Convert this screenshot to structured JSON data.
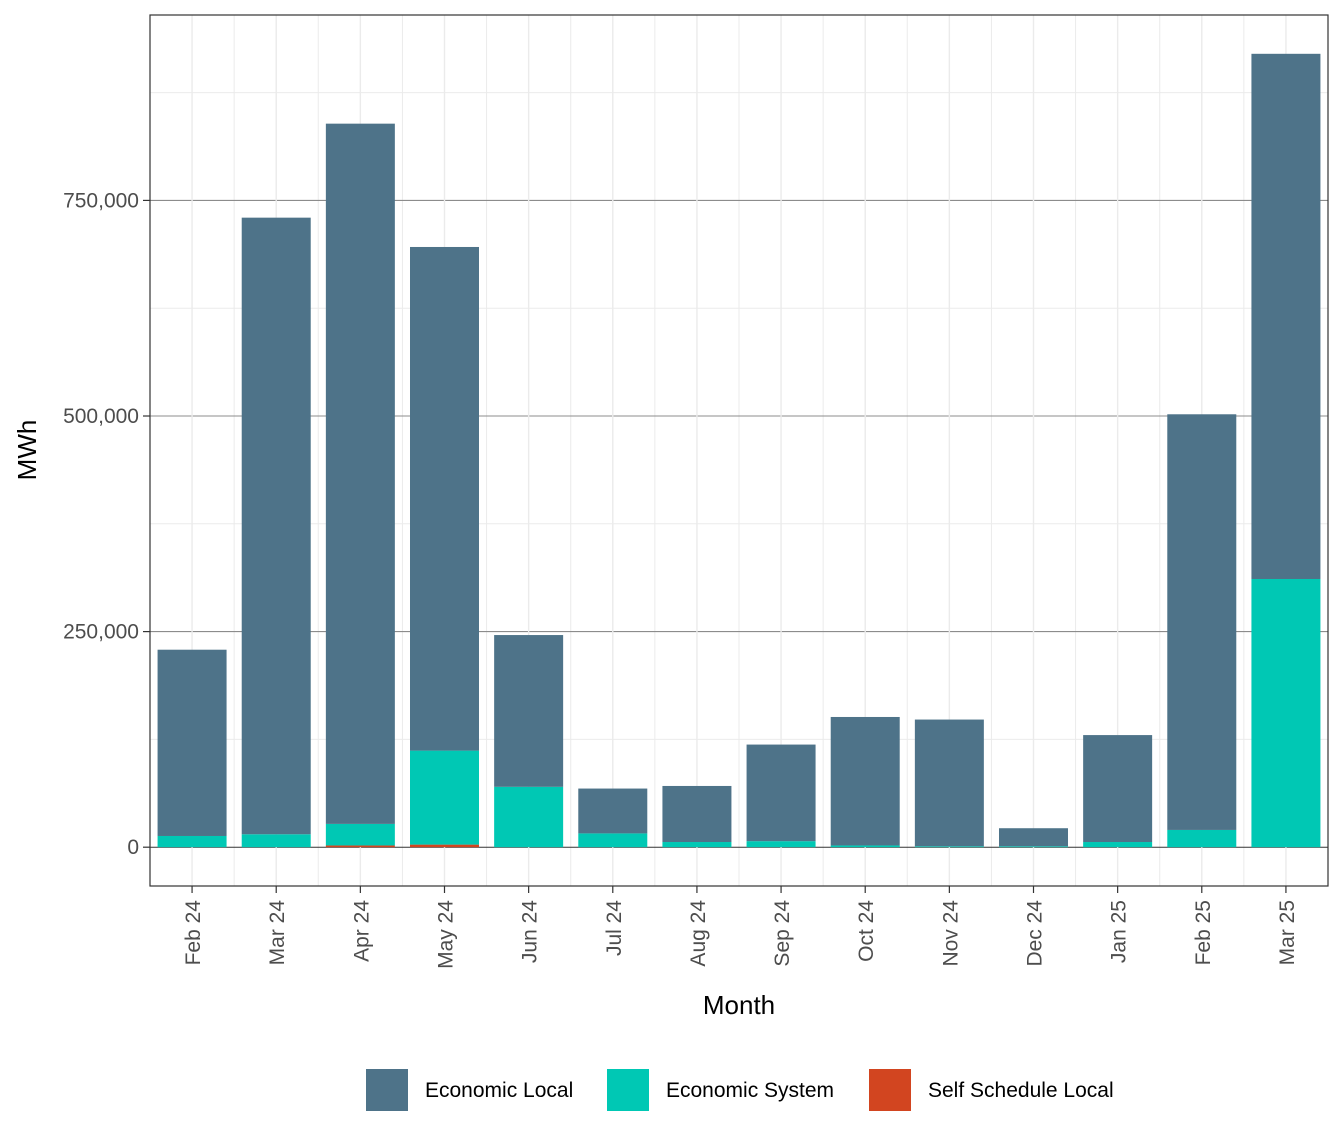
{
  "chart_data": {
    "type": "bar",
    "stacked": true,
    "categories": [
      "Feb 24",
      "Mar 24",
      "Apr 24",
      "May 24",
      "Jun 24",
      "Jul 24",
      "Aug 24",
      "Sep 24",
      "Oct 24",
      "Nov 24",
      "Dec 24",
      "Jan 25",
      "Feb 25",
      "Mar 25"
    ],
    "series": [
      {
        "name": "Self Schedule Local",
        "color": "#D24520",
        "values": [
          0,
          0,
          2000,
          3000,
          0,
          0,
          0,
          0,
          0,
          0,
          0,
          0,
          0,
          0
        ]
      },
      {
        "name": "Economic System",
        "color": "#00C8B4",
        "values": [
          13000,
          15000,
          25000,
          109000,
          70000,
          16000,
          6000,
          7000,
          2000,
          1000,
          1000,
          6000,
          20000,
          311000
        ]
      },
      {
        "name": "Economic Local",
        "color": "#4E7389",
        "values": [
          216000,
          715000,
          812000,
          584000,
          176000,
          52000,
          65000,
          112000,
          149000,
          147000,
          21000,
          124000,
          482000,
          609000
        ]
      }
    ],
    "legend_order": [
      "Economic Local",
      "Economic System",
      "Self Schedule Local"
    ],
    "xlabel": "Month",
    "ylabel": "MWh",
    "ylim": [
      -45000,
      965000
    ],
    "yticks": [
      0,
      250000,
      500000,
      750000
    ],
    "ytick_labels": [
      "0",
      "250,000",
      "500,000",
      "750,000"
    ],
    "grid": true,
    "legend_position": "bottom"
  }
}
